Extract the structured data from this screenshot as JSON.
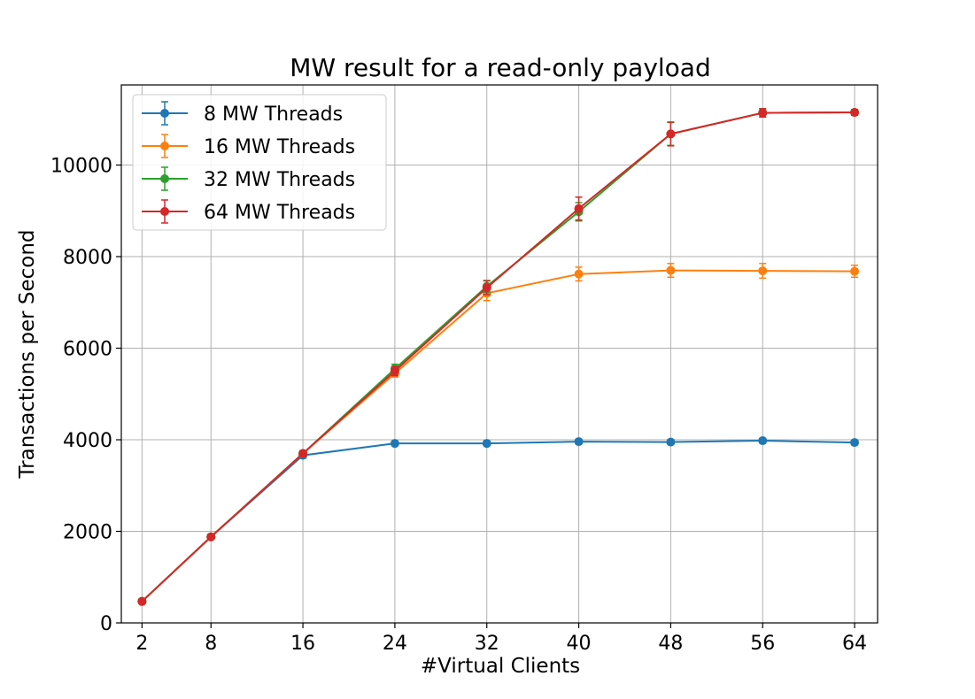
{
  "chart_data": {
    "type": "line",
    "title": "MW result for a read-only payload",
    "xlabel": "#Virtual Clients",
    "ylabel": "Transactions per Second",
    "x": [
      2,
      8,
      16,
      24,
      32,
      40,
      48,
      56,
      64
    ],
    "x_tick_labels": [
      "2",
      "8",
      "16",
      "24",
      "32",
      "40",
      "48",
      "56",
      "64"
    ],
    "y_ticks": [
      0,
      2000,
      4000,
      6000,
      8000,
      10000
    ],
    "y_tick_labels": [
      "0",
      "2000",
      "4000",
      "6000",
      "8000",
      "10000"
    ],
    "xlim": [
      0.2,
      66.0
    ],
    "ylim": [
      0,
      11750
    ],
    "grid": true,
    "legend_position": "top-left",
    "error_bars": true,
    "series": [
      {
        "name": "8 MW Threads",
        "color": "#1f77b4",
        "values": [
          470,
          1880,
          3660,
          3920,
          3920,
          3960,
          3950,
          3980,
          3940
        ],
        "errors": [
          30,
          40,
          60,
          50,
          50,
          50,
          50,
          50,
          50
        ]
      },
      {
        "name": "16 MW Threads",
        "color": "#ff7f0e",
        "values": [
          470,
          1880,
          3700,
          5450,
          7200,
          7620,
          7700,
          7690,
          7680
        ],
        "errors": [
          30,
          40,
          60,
          80,
          160,
          150,
          150,
          160,
          130
        ]
      },
      {
        "name": "32 MW Threads",
        "color": "#2ca02c",
        "values": [
          470,
          1880,
          3700,
          5550,
          7350,
          8980,
          10680,
          11140,
          11150
        ],
        "errors": [
          30,
          40,
          60,
          100,
          130,
          200,
          250,
          90,
          60
        ]
      },
      {
        "name": "64 MW Threads",
        "color": "#d62728",
        "values": [
          470,
          1880,
          3700,
          5500,
          7320,
          9050,
          10680,
          11140,
          11150
        ],
        "errors": [
          30,
          40,
          60,
          100,
          150,
          250,
          260,
          90,
          60
        ]
      }
    ]
  }
}
